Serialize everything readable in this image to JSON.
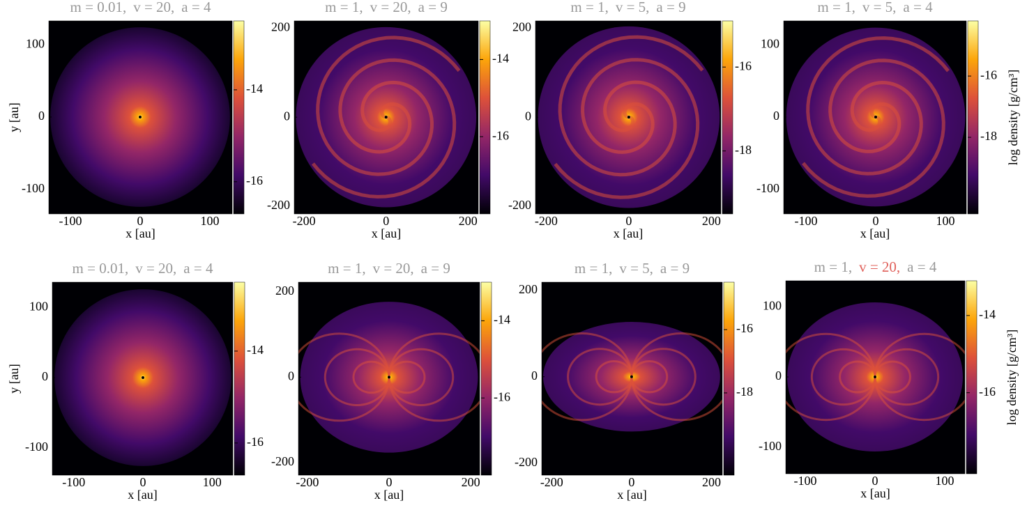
{
  "chart_data": [
    {
      "type": "image",
      "cmap": "inferno",
      "title": [
        "m = 0.01,",
        "v = 20,",
        "a = 4"
      ],
      "title_colors": [
        "#999999",
        "#999999",
        "#999999"
      ],
      "xlabel": "x [au]",
      "ylabel": "y [au]",
      "xlim": [
        -131,
        132
      ],
      "ylim": [
        -134,
        133
      ],
      "xticks": [
        -100,
        0,
        100
      ],
      "yticks": [
        -100,
        0,
        100
      ],
      "clim": [
        -16.7,
        -12.5
      ],
      "cticks": [
        -16,
        -14
      ]
    },
    {
      "type": "image",
      "cmap": "inferno",
      "title": [
        "m = 1,",
        "v = 20,",
        "a = 9"
      ],
      "title_colors": [
        "#999999",
        "#999999",
        "#999999"
      ],
      "xlabel": "x [au]",
      "xlim": [
        -224,
        225
      ],
      "ylim": [
        -217,
        216
      ],
      "xticks": [
        -200,
        0,
        200
      ],
      "yticks": [
        -200,
        0,
        200
      ],
      "clim": [
        -18,
        -13
      ],
      "cticks": [
        -16,
        -14
      ]
    },
    {
      "type": "image",
      "cmap": "inferno",
      "title": [
        "m = 1,",
        "v = 5,",
        "a = 9"
      ],
      "title_colors": [
        "#999999",
        "#999999",
        "#999999"
      ],
      "xlabel": "x [au]",
      "xlim": [
        -226,
        223
      ],
      "ylim": [
        -217,
        216
      ],
      "xticks": [
        -200,
        0,
        200
      ],
      "yticks": [
        -200,
        0,
        200
      ],
      "clim": [
        -19.5,
        -14.9
      ],
      "cticks": [
        -18,
        -16
      ]
    },
    {
      "type": "image",
      "cmap": "inferno",
      "title": [
        "m = 1,",
        "v = 5,",
        "a = 4"
      ],
      "title_colors": [
        "#999999",
        "#999999",
        "#999999"
      ],
      "xlabel": "x [au]",
      "clabel": "log density [g/cm³]",
      "xlim": [
        -132,
        130
      ],
      "ylim": [
        -134,
        133
      ],
      "xticks": [
        -100,
        0,
        100
      ],
      "yticks": [
        -100,
        0,
        100
      ],
      "clim": [
        -20.5,
        -14.2
      ],
      "cticks": [
        -18,
        -16
      ]
    },
    {
      "type": "image",
      "cmap": "inferno",
      "title": [
        "m = 0.01,",
        "v = 20,",
        "a = 4"
      ],
      "title_colors": [
        "#999999",
        "#999999",
        "#999999"
      ],
      "xlabel": "x [au]",
      "ylabel": "y [au]",
      "xlim": [
        -131,
        130
      ],
      "ylim": [
        -139,
        136
      ],
      "xticks": [
        -100,
        0,
        100
      ],
      "yticks": [
        -100,
        0,
        100
      ],
      "clim": [
        -16.7,
        -12.5
      ],
      "cticks": [
        -16,
        -14
      ]
    },
    {
      "type": "image",
      "cmap": "inferno",
      "title": [
        "m = 1,",
        "v = 20,",
        "a = 9"
      ],
      "title_colors": [
        "#999999",
        "#999999",
        "#999999"
      ],
      "xlabel": "x [au]",
      "xlim": [
        -222,
        222
      ],
      "ylim": [
        -230,
        223
      ],
      "xticks": [
        -200,
        0,
        200
      ],
      "yticks": [
        -200,
        0,
        200
      ],
      "clim": [
        -18,
        -13
      ],
      "cticks": [
        -16,
        -14
      ]
    },
    {
      "type": "image",
      "cmap": "inferno",
      "title": [
        "m = 1,",
        "v = 5,",
        "a = 9"
      ],
      "title_colors": [
        "#999999",
        "#999999",
        "#999999"
      ],
      "xlabel": "x [au]",
      "xlim": [
        -225,
        227
      ],
      "ylim": [
        -228,
        219
      ],
      "xticks": [
        -200,
        0,
        200
      ],
      "yticks": [
        -200,
        0,
        200
      ],
      "clim": [
        -20.6,
        -14.5
      ],
      "cticks": [
        -18,
        -16
      ]
    },
    {
      "type": "image",
      "cmap": "inferno",
      "title": [
        "m = 1,",
        "v = 20,",
        "a = 4"
      ],
      "title_colors": [
        "#999999",
        "#e0605a",
        "#999999"
      ],
      "xlabel": "x [au]",
      "clabel": "log density [g/cm³]",
      "xlim": [
        -128,
        129
      ],
      "ylim": [
        -138,
        137
      ],
      "xticks": [
        -100,
        0,
        100
      ],
      "yticks": [
        -100,
        0,
        100
      ],
      "clim": [
        -18.1,
        -13.1
      ],
      "cticks": [
        -16,
        -14
      ]
    }
  ]
}
